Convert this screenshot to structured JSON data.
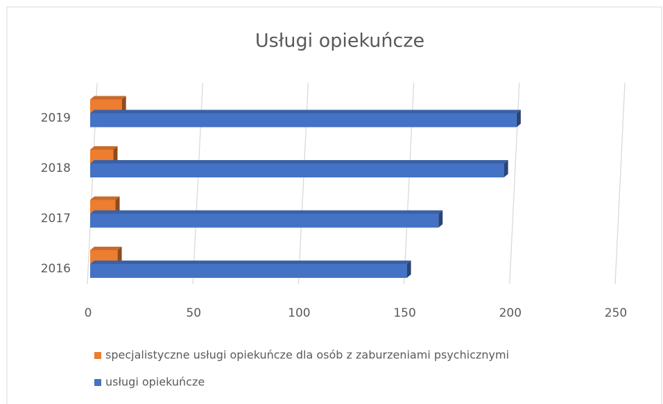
{
  "chart_data": {
    "type": "bar3d_horizontal",
    "title": "Usługi opiekuńcze",
    "categories": [
      "2016",
      "2017",
      "2018",
      "2019"
    ],
    "series": [
      {
        "name": "specjalistyczne usługi opiekuńcze dla osób z zaburzeniami psychicznymi",
        "color": "#ed7d31",
        "values": [
          13,
          12,
          11,
          15
        ]
      },
      {
        "name": "usługi opiekuńcze",
        "color": "#4472c4",
        "values": [
          150,
          165,
          196,
          202
        ]
      }
    ],
    "xlim": [
      0,
      250
    ],
    "xticks": [
      0,
      50,
      100,
      150,
      200,
      250
    ],
    "grid": true
  }
}
